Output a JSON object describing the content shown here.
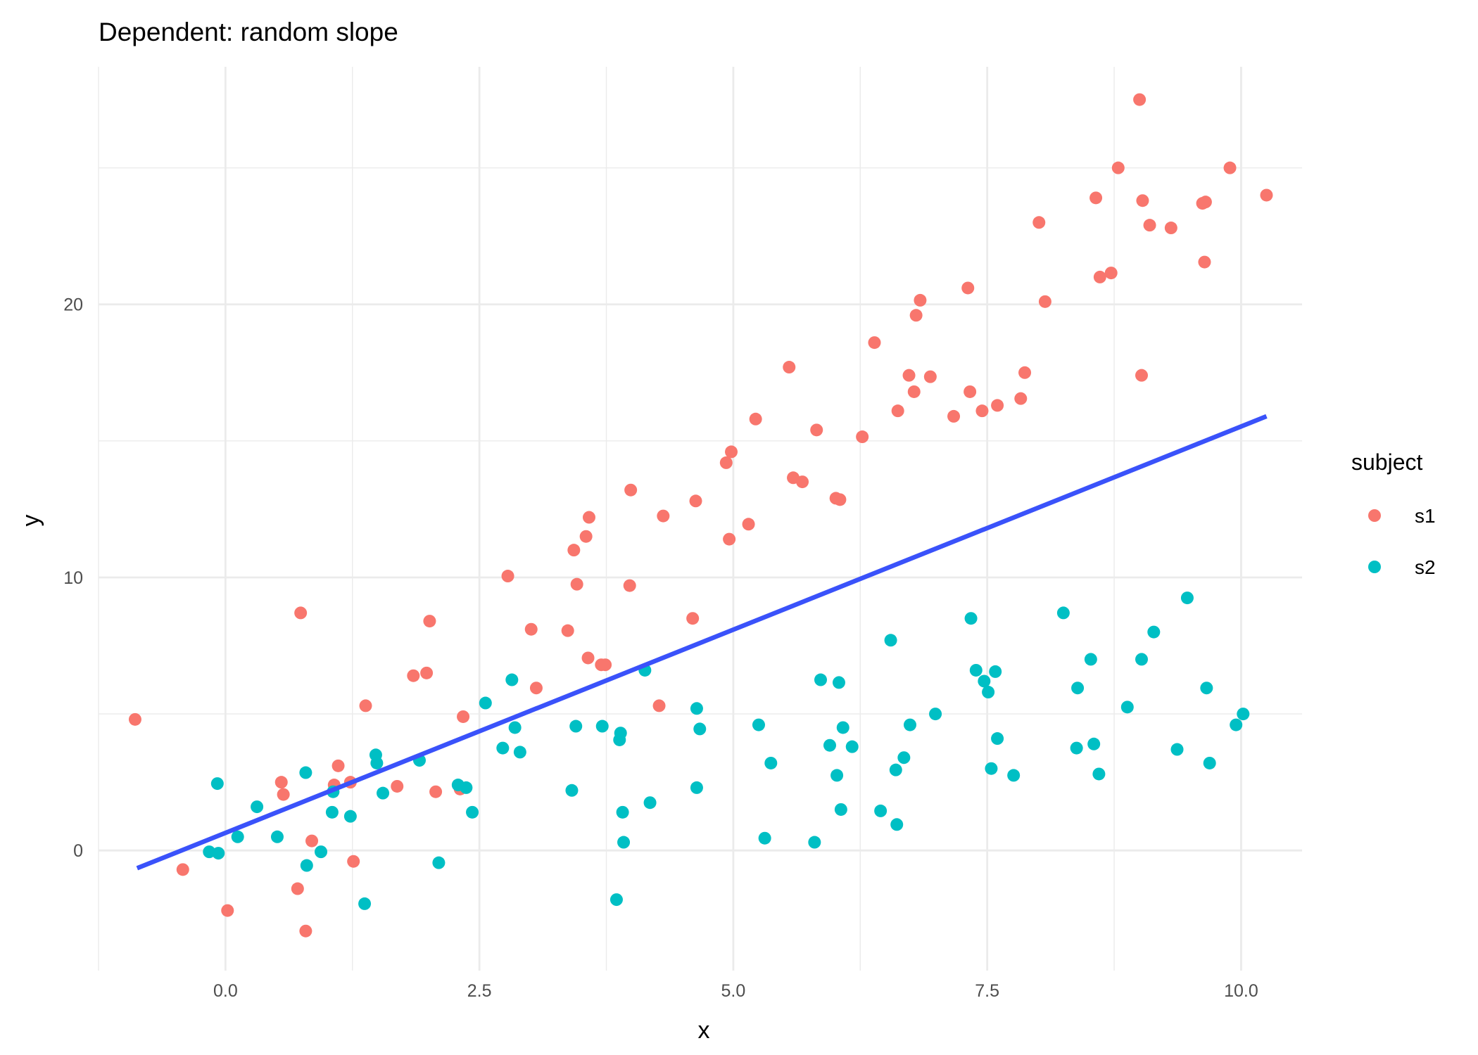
{
  "chart_data": {
    "type": "scatter",
    "title": "Dependent: random slope",
    "xlabel": "x",
    "ylabel": "y",
    "xlim": [
      -1.25,
      10.6
    ],
    "ylim": [
      -4.4,
      28.7
    ],
    "x_ticks": [
      0.0,
      2.5,
      5.0,
      7.5,
      10.0
    ],
    "x_tick_labels": [
      "0.0",
      "2.5",
      "5.0",
      "7.5",
      "10.0"
    ],
    "y_ticks": [
      0,
      10,
      20
    ],
    "y_tick_labels": [
      "0",
      "10",
      "20"
    ],
    "grid": true,
    "legend": {
      "title": "subject",
      "position": "right"
    },
    "series": [
      {
        "name": "s1",
        "color": "#F8766D",
        "points": [
          [
            -0.89,
            4.8
          ],
          [
            -0.42,
            -0.7
          ],
          [
            0.02,
            -2.2
          ],
          [
            0.55,
            2.5
          ],
          [
            0.57,
            2.05
          ],
          [
            0.71,
            -1.4
          ],
          [
            0.74,
            8.7
          ],
          [
            0.79,
            -2.95
          ],
          [
            0.85,
            0.35
          ],
          [
            1.07,
            2.4
          ],
          [
            1.11,
            3.1
          ],
          [
            1.23,
            2.5
          ],
          [
            1.26,
            -0.4
          ],
          [
            1.38,
            5.3
          ],
          [
            1.69,
            2.35
          ],
          [
            1.85,
            6.4
          ],
          [
            1.98,
            6.5
          ],
          [
            2.01,
            8.4
          ],
          [
            2.07,
            2.15
          ],
          [
            2.31,
            2.25
          ],
          [
            2.34,
            4.9
          ],
          [
            2.78,
            10.05
          ],
          [
            3.01,
            8.1
          ],
          [
            3.06,
            5.95
          ],
          [
            3.37,
            8.05
          ],
          [
            3.43,
            11.0
          ],
          [
            3.46,
            9.75
          ],
          [
            3.55,
            11.5
          ],
          [
            3.57,
            7.05
          ],
          [
            3.58,
            12.2
          ],
          [
            3.7,
            6.8
          ],
          [
            3.74,
            6.8
          ],
          [
            3.98,
            9.7
          ],
          [
            3.99,
            13.2
          ],
          [
            4.27,
            5.3
          ],
          [
            4.31,
            12.25
          ],
          [
            4.6,
            8.5
          ],
          [
            4.63,
            12.8
          ],
          [
            4.93,
            14.2
          ],
          [
            4.96,
            11.4
          ],
          [
            4.98,
            14.6
          ],
          [
            5.15,
            11.95
          ],
          [
            5.22,
            15.8
          ],
          [
            5.55,
            17.7
          ],
          [
            5.59,
            13.65
          ],
          [
            5.68,
            13.5
          ],
          [
            5.82,
            15.4
          ],
          [
            6.01,
            12.9
          ],
          [
            6.05,
            12.85
          ],
          [
            6.27,
            15.15
          ],
          [
            6.39,
            18.6
          ],
          [
            6.62,
            16.1
          ],
          [
            6.73,
            17.4
          ],
          [
            6.78,
            16.8
          ],
          [
            6.8,
            19.6
          ],
          [
            6.84,
            20.15
          ],
          [
            6.94,
            17.35
          ],
          [
            7.17,
            15.9
          ],
          [
            7.31,
            20.6
          ],
          [
            7.33,
            16.8
          ],
          [
            7.45,
            16.1
          ],
          [
            7.6,
            16.3
          ],
          [
            7.83,
            16.55
          ],
          [
            7.87,
            17.5
          ],
          [
            8.01,
            23.0
          ],
          [
            8.07,
            20.1
          ],
          [
            8.57,
            23.9
          ],
          [
            8.61,
            21.0
          ],
          [
            8.72,
            21.15
          ],
          [
            8.79,
            25.0
          ],
          [
            9.0,
            27.5
          ],
          [
            9.02,
            17.4
          ],
          [
            9.03,
            23.8
          ],
          [
            9.1,
            22.9
          ],
          [
            9.31,
            22.8
          ],
          [
            9.62,
            23.7
          ],
          [
            9.65,
            23.75
          ],
          [
            9.64,
            21.55
          ],
          [
            9.89,
            25.0
          ],
          [
            10.25,
            24.0
          ]
        ]
      },
      {
        "name": "s2",
        "color": "#00BFC4",
        "points": [
          [
            -0.16,
            -0.05
          ],
          [
            -0.08,
            2.45
          ],
          [
            -0.07,
            -0.1
          ],
          [
            0.12,
            0.5
          ],
          [
            0.31,
            1.6
          ],
          [
            0.51,
            0.5
          ],
          [
            0.79,
            2.85
          ],
          [
            0.8,
            -0.55
          ],
          [
            0.94,
            -0.05
          ],
          [
            1.05,
            1.4
          ],
          [
            1.06,
            2.15
          ],
          [
            1.23,
            1.25
          ],
          [
            1.37,
            -1.95
          ],
          [
            1.48,
            3.5
          ],
          [
            1.49,
            3.2
          ],
          [
            1.55,
            2.1
          ],
          [
            1.91,
            3.3
          ],
          [
            2.1,
            -0.45
          ],
          [
            2.29,
            2.4
          ],
          [
            2.37,
            2.3
          ],
          [
            2.43,
            1.4
          ],
          [
            2.56,
            5.4
          ],
          [
            2.73,
            3.75
          ],
          [
            2.82,
            6.25
          ],
          [
            2.85,
            4.5
          ],
          [
            2.9,
            3.6
          ],
          [
            3.41,
            2.2
          ],
          [
            3.45,
            4.55
          ],
          [
            3.71,
            4.55
          ],
          [
            3.85,
            -1.8
          ],
          [
            3.88,
            4.05
          ],
          [
            3.89,
            4.3
          ],
          [
            3.91,
            1.4
          ],
          [
            3.92,
            0.3
          ],
          [
            4.13,
            6.6
          ],
          [
            4.18,
            1.75
          ],
          [
            4.64,
            2.3
          ],
          [
            4.64,
            5.2
          ],
          [
            4.67,
            4.45
          ],
          [
            5.25,
            4.6
          ],
          [
            5.31,
            0.45
          ],
          [
            5.37,
            3.2
          ],
          [
            5.8,
            0.3
          ],
          [
            5.86,
            6.25
          ],
          [
            5.95,
            3.85
          ],
          [
            6.02,
            2.75
          ],
          [
            6.04,
            6.15
          ],
          [
            6.06,
            1.5
          ],
          [
            6.08,
            4.5
          ],
          [
            6.17,
            3.8
          ],
          [
            6.45,
            1.45
          ],
          [
            6.55,
            7.7
          ],
          [
            6.6,
            2.95
          ],
          [
            6.61,
            0.95
          ],
          [
            6.68,
            3.4
          ],
          [
            6.74,
            4.6
          ],
          [
            6.99,
            5.0
          ],
          [
            7.34,
            8.5
          ],
          [
            7.39,
            6.6
          ],
          [
            7.47,
            6.2
          ],
          [
            7.51,
            5.8
          ],
          [
            7.54,
            3.0
          ],
          [
            7.58,
            6.55
          ],
          [
            7.6,
            4.1
          ],
          [
            7.76,
            2.75
          ],
          [
            8.25,
            8.7
          ],
          [
            8.38,
            3.75
          ],
          [
            8.39,
            5.95
          ],
          [
            8.52,
            7.0
          ],
          [
            8.55,
            3.9
          ],
          [
            8.6,
            2.8
          ],
          [
            8.88,
            5.25
          ],
          [
            9.02,
            7.0
          ],
          [
            9.14,
            8.0
          ],
          [
            9.37,
            3.7
          ],
          [
            9.47,
            9.25
          ],
          [
            9.66,
            5.95
          ],
          [
            9.69,
            3.2
          ],
          [
            9.95,
            4.6
          ],
          [
            10.02,
            5.0
          ]
        ]
      }
    ],
    "fit_line": {
      "color": "#3A52FA",
      "x": [
        -0.87,
        10.25
      ],
      "y": [
        -0.65,
        15.9
      ]
    }
  }
}
